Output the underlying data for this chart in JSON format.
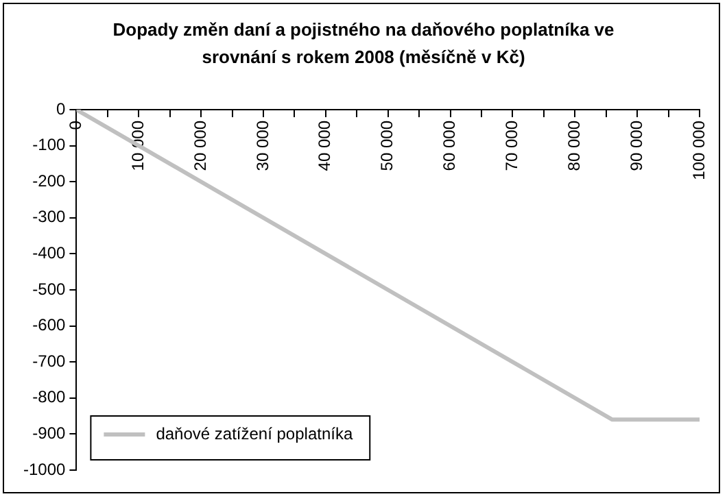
{
  "chart_data": {
    "type": "line",
    "title": "Dopady změn daní a pojistného na daňového poplatníka ve srovnání s rokem 2008 (měsíčně v Kč)",
    "x": [
      0,
      86000,
      100000
    ],
    "series": [
      {
        "name": "daňové zatížení poplatníka",
        "color": "#c0c0c0",
        "values": [
          0,
          -860,
          -860
        ]
      }
    ],
    "xlim": [
      0,
      100000
    ],
    "xticks": [
      0,
      {
        "value": 5000,
        "label": null
      },
      {
        "value": 10000,
        "label": "10 000"
      },
      {
        "value": 15000,
        "label": null
      },
      {
        "value": 20000,
        "label": "20 000"
      },
      {
        "value": 25000,
        "label": null
      },
      {
        "value": 30000,
        "label": "30 000"
      },
      {
        "value": 35000,
        "label": null
      },
      {
        "value": 40000,
        "label": "40 000"
      },
      {
        "value": 45000,
        "label": null
      },
      {
        "value": 50000,
        "label": "50 000"
      },
      {
        "value": 55000,
        "label": null
      },
      {
        "value": 60000,
        "label": "60 000"
      },
      {
        "value": 65000,
        "label": null
      },
      {
        "value": 70000,
        "label": "70 000"
      },
      {
        "value": 75000,
        "label": null
      },
      {
        "value": 80000,
        "label": "80 000"
      },
      {
        "value": 85000,
        "label": null
      },
      {
        "value": 90000,
        "label": "90 000"
      },
      {
        "value": 95000,
        "label": null
      },
      {
        "value": 100000,
        "label": "100 000"
      }
    ],
    "ylim": [
      -1000,
      0
    ],
    "yticks": [
      -1000,
      -900,
      -800,
      -700,
      -600,
      -500,
      -400,
      -300,
      -200,
      -100,
      0
    ],
    "grid": false,
    "legend": "bottom left",
    "marker": "none",
    "line_style": "solid"
  }
}
